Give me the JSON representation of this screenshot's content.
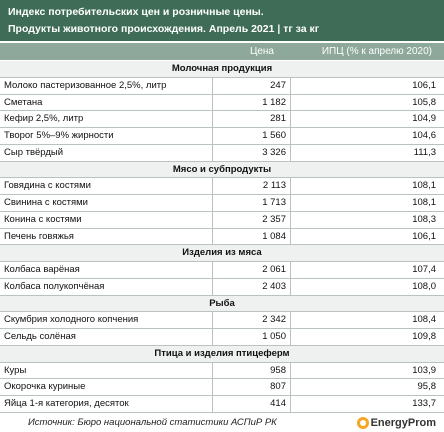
{
  "header": {
    "title": [
      "Индекс потребительских цен и розничные цены.",
      "Продукты животного происхождения. Апрель 2021 | тг за кг"
    ]
  },
  "table": {
    "columns": [
      "Цена",
      "ИПЦ (% к апрелю 2020)"
    ],
    "sections": [
      {
        "title": "Молочная продукция",
        "rows": [
          [
            "Молоко пастеризованное 2,5%, литр",
            "247",
            "106,1"
          ],
          [
            "Сметана",
            "1 182",
            "105,8"
          ],
          [
            "Кефир 2,5%, литр",
            "281",
            "104,9"
          ],
          [
            "Творог 5%–9% жирности",
            "1 560",
            "104,6"
          ],
          [
            "Сыр твёрдый",
            "3 326",
            "111,3"
          ]
        ]
      },
      {
        "title": "Мясо и субпродукты",
        "rows": [
          [
            "Говядина с костями",
            "2 113",
            "108,1"
          ],
          [
            "Свинина с костями",
            "1 713",
            "108,1"
          ],
          [
            "Конина с костями",
            "2 357",
            "108,3"
          ],
          [
            "Печень говяжья",
            "1 084",
            "106,1"
          ]
        ]
      },
      {
        "title": "Изделия из мяса",
        "rows": [
          [
            "Колбаса варёная",
            "2 061",
            "107,4"
          ],
          [
            "Колбаса полукопчёная",
            "2 403",
            "108,0"
          ]
        ]
      },
      {
        "title": "Рыба",
        "rows": [
          [
            "Скумбрия холодного копчения",
            "2 342",
            "108,4"
          ],
          [
            "Сельдь солёная",
            "1 050",
            "109,8"
          ]
        ]
      },
      {
        "title": "Птица и изделия птицеферм",
        "rows": [
          [
            "Куры",
            "958",
            "103,9"
          ],
          [
            "Окорочка куриные",
            "807",
            "95,8"
          ],
          [
            "Яйца 1-я категория, десяток",
            "414",
            "133,7"
          ]
        ]
      }
    ]
  },
  "footer": {
    "source": "Источник: Бюро национальной статистики АСПиР РК",
    "logo": "EnergyProm"
  }
}
